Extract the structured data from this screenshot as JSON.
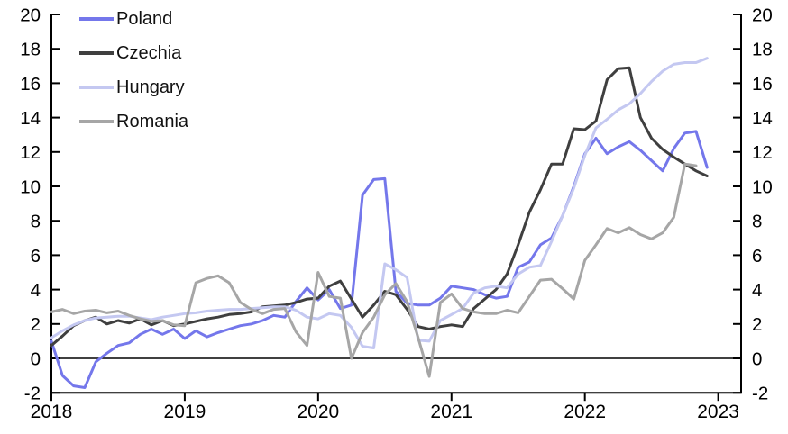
{
  "figure": {
    "background": "#ffffff",
    "axis_color": "#000000",
    "text_color": "#000000",
    "zero_line_color": "#000000"
  },
  "chart_data": {
    "type": "line",
    "title": "",
    "xlabel": "",
    "ylabel": "",
    "x_frequency": "monthly",
    "x_start": "2018-01",
    "x_end": "2022-12",
    "months": [
      "2018-01",
      "2018-02",
      "2018-03",
      "2018-04",
      "2018-05",
      "2018-06",
      "2018-07",
      "2018-08",
      "2018-09",
      "2018-10",
      "2018-11",
      "2018-12",
      "2019-01",
      "2019-02",
      "2019-03",
      "2019-04",
      "2019-05",
      "2019-06",
      "2019-07",
      "2019-08",
      "2019-09",
      "2019-10",
      "2019-11",
      "2019-12",
      "2020-01",
      "2020-02",
      "2020-03",
      "2020-04",
      "2020-05",
      "2020-06",
      "2020-07",
      "2020-08",
      "2020-09",
      "2020-10",
      "2020-11",
      "2020-12",
      "2021-01",
      "2021-02",
      "2021-03",
      "2021-04",
      "2021-05",
      "2021-06",
      "2021-07",
      "2021-08",
      "2021-09",
      "2021-10",
      "2021-11",
      "2021-12",
      "2022-01",
      "2022-02",
      "2022-03",
      "2022-04",
      "2022-05",
      "2022-06",
      "2022-07",
      "2022-08",
      "2022-09",
      "2022-10",
      "2022-11",
      "2022-12"
    ],
    "x_tick_labels": [
      "2018",
      "2019",
      "2020",
      "2021",
      "2022",
      "2023"
    ],
    "y_tick_values": [
      -2,
      0,
      2,
      4,
      6,
      8,
      10,
      12,
      14,
      16,
      18,
      20
    ],
    "ylim": [
      -2,
      20
    ],
    "dual_axis": true,
    "grid": false,
    "zero_line": true,
    "legend_position": "top-left-inside",
    "series": [
      {
        "name": "Poland",
        "color": "#7477EB",
        "values": [
          1.0,
          -1.0,
          -1.6,
          -1.7,
          -0.2,
          0.3,
          0.75,
          0.9,
          1.4,
          1.7,
          1.4,
          1.7,
          1.15,
          1.6,
          1.25,
          1.5,
          1.7,
          1.9,
          2.0,
          2.2,
          2.5,
          2.4,
          3.3,
          4.1,
          3.4,
          4.0,
          2.9,
          3.1,
          9.5,
          10.4,
          10.45,
          3.9,
          3.2,
          3.1,
          3.1,
          3.5,
          4.2,
          4.1,
          4.0,
          3.7,
          3.5,
          3.6,
          5.3,
          5.6,
          6.6,
          7.0,
          8.3,
          10.0,
          11.9,
          12.8,
          11.9,
          12.3,
          12.6,
          12.1,
          11.5,
          10.9,
          12.2,
          13.1,
          13.2,
          11.1
        ]
      },
      {
        "name": "Czechia",
        "color": "#3F3F3F",
        "values": [
          0.75,
          1.3,
          1.9,
          2.2,
          2.4,
          2.0,
          2.2,
          2.05,
          2.3,
          1.95,
          2.2,
          1.9,
          2.0,
          2.15,
          2.3,
          2.4,
          2.55,
          2.6,
          2.7,
          3.0,
          3.05,
          3.1,
          3.25,
          3.45,
          3.5,
          4.2,
          4.5,
          3.45,
          2.4,
          3.1,
          3.9,
          3.7,
          2.85,
          1.85,
          1.7,
          1.85,
          1.95,
          1.85,
          2.9,
          3.45,
          4.0,
          4.9,
          6.6,
          8.5,
          9.8,
          11.3,
          11.3,
          13.35,
          13.3,
          13.8,
          16.2,
          16.85,
          16.9,
          14.0,
          12.8,
          12.15,
          11.7,
          11.3,
          10.9,
          10.6
        ]
      },
      {
        "name": "Hungary",
        "color": "#C4C8F1",
        "values": [
          1.2,
          1.6,
          1.95,
          2.2,
          2.35,
          2.4,
          2.45,
          2.45,
          2.35,
          2.25,
          2.4,
          2.5,
          2.6,
          2.65,
          2.75,
          2.8,
          2.85,
          2.85,
          2.9,
          2.95,
          3.0,
          3.0,
          2.8,
          2.4,
          2.3,
          2.6,
          2.5,
          1.8,
          0.7,
          0.6,
          5.5,
          5.15,
          4.7,
          1.05,
          1.0,
          2.2,
          2.55,
          2.9,
          3.8,
          4.1,
          4.2,
          4.1,
          4.9,
          5.3,
          5.4,
          6.8,
          8.3,
          9.9,
          11.8,
          13.4,
          13.9,
          14.45,
          14.8,
          15.4,
          16.1,
          16.7,
          17.1,
          17.2,
          17.2,
          17.45
        ]
      },
      {
        "name": "Romania",
        "color": "#A6A6A6",
        "values": [
          2.7,
          2.85,
          2.6,
          2.75,
          2.8,
          2.65,
          2.75,
          2.5,
          2.3,
          2.15,
          2.2,
          1.95,
          1.9,
          4.4,
          4.65,
          4.8,
          4.4,
          3.25,
          2.85,
          2.6,
          2.85,
          2.9,
          1.55,
          0.75,
          5.0,
          3.6,
          3.5,
          0.0,
          1.5,
          2.4,
          3.7,
          4.35,
          3.3,
          1.2,
          -1.05,
          3.25,
          3.75,
          2.9,
          2.7,
          2.6,
          2.6,
          2.8,
          2.65,
          3.6,
          4.55,
          4.6,
          4.05,
          3.45,
          5.7,
          6.6,
          7.55,
          7.3,
          7.6,
          7.2,
          6.95,
          7.3,
          8.2,
          11.3,
          11.2,
          null
        ]
      }
    ]
  }
}
